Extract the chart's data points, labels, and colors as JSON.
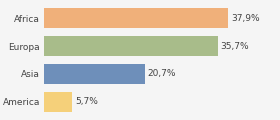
{
  "categories": [
    "Africa",
    "Europa",
    "Asia",
    "America"
  ],
  "values": [
    37.9,
    35.7,
    20.7,
    5.7
  ],
  "labels": [
    "37,9%",
    "35,7%",
    "20,7%",
    "5,7%"
  ],
  "bar_colors": [
    "#f0b07a",
    "#a8bc8a",
    "#6e8fba",
    "#f5d07a"
  ],
  "background_color": "#f5f5f5",
  "xlim": [
    0,
    48
  ],
  "label_fontsize": 6.5,
  "category_fontsize": 6.5,
  "bar_height": 0.72
}
